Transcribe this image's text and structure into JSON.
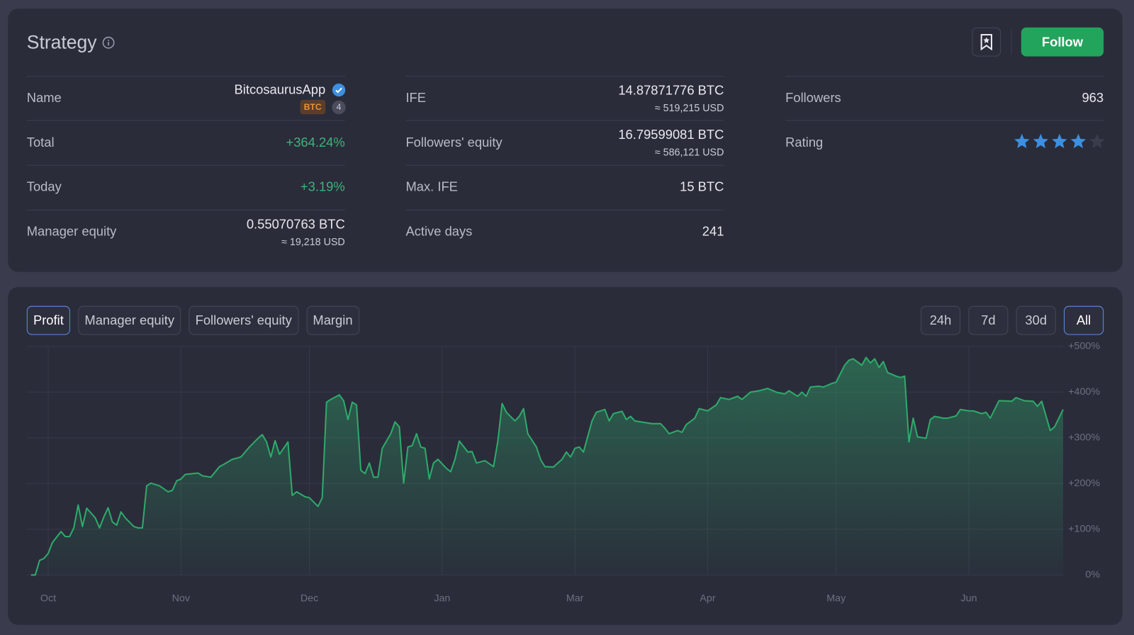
{
  "header": {
    "title": "Strategy",
    "follow": "Follow"
  },
  "stats": {
    "name": {
      "label": "Name",
      "value": "BitcosaurusApp",
      "badge": "BTC",
      "count": 4
    },
    "total": {
      "label": "Total",
      "value": "+364.24%"
    },
    "today": {
      "label": "Today",
      "value": "+3.19%"
    },
    "manager_equity": {
      "label": "Manager equity",
      "value": "0.55070763 BTC",
      "sub": "≈ 19,218 USD"
    },
    "ife": {
      "label": "IFE",
      "value": "14.87871776 BTC",
      "sub": "≈ 519,215 USD"
    },
    "followers_equity": {
      "label": "Followers' equity",
      "value": "16.79599081 BTC",
      "sub": "≈ 586,121 USD"
    },
    "max_ife": {
      "label": "Max. IFE",
      "value": "15 BTC"
    },
    "active_days": {
      "label": "Active days",
      "value": "241"
    },
    "followers": {
      "label": "Followers",
      "value": "963"
    },
    "rating": {
      "label": "Rating",
      "value": 4,
      "max": 5
    }
  },
  "tabs": [
    {
      "label": "Profit",
      "active": true
    },
    {
      "label": "Manager equity"
    },
    {
      "label": "Followers' equity"
    },
    {
      "label": "Margin"
    }
  ],
  "ranges": [
    {
      "label": "24h"
    },
    {
      "label": "7d"
    },
    {
      "label": "30d"
    },
    {
      "label": "All",
      "active": true
    }
  ],
  "chart_data": {
    "type": "area",
    "color": "#2eaa6a",
    "x": [
      -4,
      -3,
      -2,
      -1,
      0,
      1,
      3,
      4,
      5,
      6,
      7,
      8,
      9,
      11,
      12,
      13,
      14,
      15,
      16,
      17,
      18,
      20,
      21,
      22,
      23,
      24,
      26,
      28,
      29,
      30,
      31,
      32,
      35,
      36,
      38,
      40,
      41,
      43,
      45,
      47,
      49,
      50,
      51,
      52,
      53,
      54,
      56,
      57,
      58,
      60,
      61,
      63,
      64,
      65,
      66,
      68,
      69,
      70,
      71,
      72,
      73,
      74,
      75,
      76,
      77,
      78,
      80,
      81,
      82,
      83,
      84,
      85,
      86,
      87,
      88,
      89,
      90,
      91,
      93,
      94,
      95,
      96,
      98,
      99,
      100,
      102,
      104,
      105,
      106,
      107,
      109,
      110,
      111,
      112,
      114,
      115,
      116,
      118,
      119,
      120,
      121,
      122,
      123,
      124,
      125,
      127,
      128,
      130,
      131,
      132,
      134,
      135,
      136,
      137,
      139,
      141,
      143,
      144,
      145,
      147,
      148,
      149,
      151,
      152,
      154,
      156,
      157,
      159,
      161,
      162,
      164,
      166,
      168,
      170,
      172,
      173,
      175,
      176,
      177,
      178,
      180,
      181,
      183,
      184,
      186,
      187,
      188,
      190,
      191,
      192,
      193,
      194,
      195,
      196,
      198,
      199,
      200,
      201,
      202,
      203,
      205,
      206,
      207,
      209,
      210,
      212,
      213,
      215,
      216,
      218,
      219,
      220,
      222,
      223,
      225,
      226,
      228,
      230,
      231,
      232,
      234,
      235,
      237
    ],
    "values": [
      0,
      0,
      32,
      36,
      47,
      71,
      95,
      84,
      84,
      103,
      153,
      106,
      146,
      125,
      103,
      127,
      147,
      116,
      109,
      138,
      125,
      106,
      103,
      103,
      195,
      201,
      195,
      182,
      185,
      206,
      210,
      220,
      223,
      217,
      214,
      237,
      242,
      253,
      258,
      280,
      299,
      307,
      291,
      258,
      294,
      264,
      291,
      174,
      182,
      171,
      169,
      150,
      169,
      378,
      384,
      394,
      381,
      340,
      378,
      372,
      229,
      222,
      245,
      214,
      214,
      277,
      309,
      335,
      324,
      201,
      280,
      283,
      309,
      280,
      277,
      210,
      245,
      253,
      233,
      226,
      253,
      293,
      269,
      270,
      245,
      250,
      237,
      293,
      375,
      356,
      337,
      347,
      364,
      309,
      280,
      252,
      237,
      236,
      245,
      253,
      269,
      258,
      277,
      280,
      269,
      337,
      356,
      362,
      337,
      353,
      358,
      340,
      347,
      337,
      334,
      331,
      331,
      321,
      309,
      316,
      312,
      329,
      343,
      364,
      359,
      372,
      388,
      384,
      391,
      384,
      400,
      403,
      408,
      400,
      396,
      403,
      391,
      400,
      391,
      411,
      413,
      411,
      419,
      422,
      459,
      470,
      473,
      459,
      476,
      464,
      473,
      454,
      467,
      443,
      435,
      432,
      435,
      291,
      343,
      302,
      299,
      340,
      347,
      343,
      343,
      348,
      362,
      359,
      359,
      353,
      356,
      343,
      381,
      381,
      380,
      388,
      381,
      380,
      369,
      380,
      316,
      324,
      362
    ],
    "xlim": [
      -5,
      237
    ],
    "xticks": [
      {
        "value": 0,
        "label": "Oct"
      },
      {
        "value": 31,
        "label": "Nov"
      },
      {
        "value": 61,
        "label": "Dec"
      },
      {
        "value": 92,
        "label": "Jan"
      },
      {
        "value": 123,
        "label": "Mar"
      },
      {
        "value": 154,
        "label": "Apr"
      },
      {
        "value": 184,
        "label": "May"
      },
      {
        "value": 215,
        "label": "Jun"
      }
    ],
    "ylim": [
      0,
      500
    ],
    "yticks": [
      {
        "value": 0,
        "label": "0%"
      },
      {
        "value": 100,
        "label": "+100%"
      },
      {
        "value": 200,
        "label": "+200%"
      },
      {
        "value": 300,
        "label": "+300%"
      },
      {
        "value": 400,
        "label": "+400%"
      },
      {
        "value": 500,
        "label": "+500%"
      }
    ],
    "grid": true
  }
}
